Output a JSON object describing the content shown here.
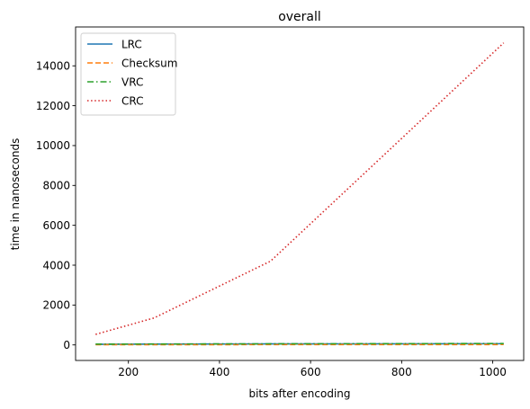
{
  "chart_data": {
    "type": "line",
    "title": "overall",
    "xlabel": "bits after encoding",
    "ylabel": "time in nanoseconds",
    "xlim": [
      84,
      1068
    ],
    "ylim": [
      -780,
      15950
    ],
    "xticks": [
      200,
      400,
      600,
      800,
      1000
    ],
    "yticks": [
      0,
      2000,
      4000,
      6000,
      8000,
      10000,
      12000,
      14000
    ],
    "legend_position": "top-left",
    "grid": false,
    "series": [
      {
        "name": "LRC",
        "color": "#1f77b4",
        "dash": "solid",
        "x": [
          128,
          256,
          512,
          1024
        ],
        "y": [
          30,
          40,
          50,
          60
        ]
      },
      {
        "name": "Checksum",
        "color": "#ff7f0e",
        "dash": "dashed",
        "x": [
          128,
          256,
          512,
          1024
        ],
        "y": [
          10,
          12,
          15,
          20
        ]
      },
      {
        "name": "VRC",
        "color": "#2ca02c",
        "dash": "dashdot",
        "x": [
          128,
          256,
          512,
          1024
        ],
        "y": [
          40,
          45,
          55,
          70
        ]
      },
      {
        "name": "CRC",
        "color": "#d62728",
        "dash": "dotted",
        "x": [
          128,
          256,
          512,
          1024
        ],
        "y": [
          530,
          1350,
          4200,
          15150
        ]
      }
    ]
  }
}
